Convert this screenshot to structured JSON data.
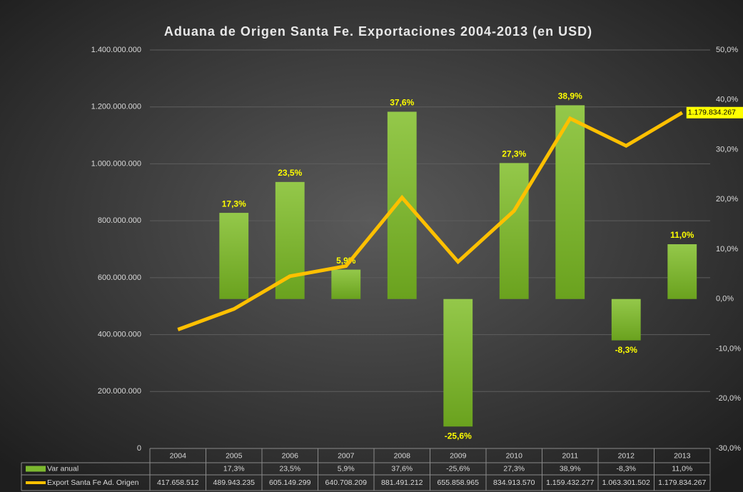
{
  "chart_data": {
    "type": "bar-line",
    "title": "Aduana de Origen Santa Fe. Exportaciones 2004-2013 (en USD)",
    "categories": [
      "2004",
      "2005",
      "2006",
      "2007",
      "2008",
      "2009",
      "2010",
      "2011",
      "2012",
      "2013"
    ],
    "series": [
      {
        "name": "Var anual",
        "type": "bar",
        "axis": "y2",
        "color": "#7cb82f",
        "values": [
          null,
          17.3,
          23.5,
          5.9,
          37.6,
          -25.6,
          27.3,
          38.9,
          -8.3,
          11.0
        ],
        "value_labels": [
          null,
          "17,3%",
          "23,5%",
          "5,9%",
          "37,6%",
          "-25,6%",
          "27,3%",
          "38,9%",
          "-8,3%",
          "11,0%"
        ]
      },
      {
        "name": "Export Santa Fe Ad. Origen",
        "type": "line",
        "axis": "y",
        "color": "#ffc000",
        "values": [
          417658512,
          489943235,
          605149299,
          640708209,
          881491212,
          655858965,
          834913570,
          1159432277,
          1063301502,
          1179834267
        ],
        "value_labels": [
          "417.658.512",
          "489.943.235",
          "605.149.299",
          "640.708.209",
          "881.491.212",
          "655.858.965",
          "834.913.570",
          "1.159.432.277",
          "1.063.301.502",
          "1.179.834.267"
        ]
      }
    ],
    "ylim": [
      0,
      1400000000
    ],
    "yticks": [
      0,
      {
        "value": 200000000,
        "label": "200.000.000"
      },
      {
        "value": 400000000,
        "label": "400.000.000"
      },
      {
        "value": 600000000,
        "label": "600.000.000"
      },
      {
        "value": 800000000,
        "label": "800.000.000"
      },
      {
        "value": 1000000000,
        "label": "1.000.000.000"
      },
      {
        "value": 1200000000,
        "label": "1.200.000.000"
      },
      {
        "value": 1400000000,
        "label": "1.400.000.000"
      }
    ],
    "y2lim": [
      -30,
      50
    ],
    "y2ticks": [
      {
        "value": -30,
        "label": "-30,0%"
      },
      {
        "value": -20,
        "label": "-20,0%"
      },
      {
        "value": -10,
        "label": "-10,0%"
      },
      {
        "value": 0,
        "label": "0,0%"
      },
      {
        "value": 10,
        "label": "10,0%"
      },
      {
        "value": 20,
        "label": "20,0%"
      },
      {
        "value": 30,
        "label": "30,0%"
      },
      {
        "value": 40,
        "label": "40,0%"
      },
      {
        "value": 50,
        "label": "50,0%"
      }
    ],
    "grid": true
  }
}
